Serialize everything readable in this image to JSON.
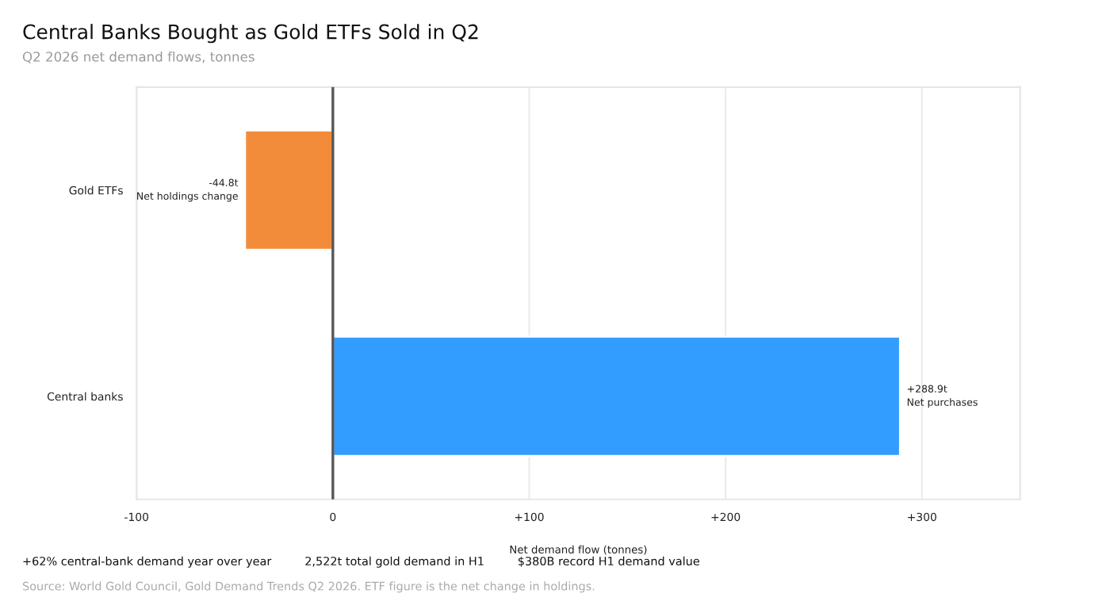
{
  "chart_data": {
    "type": "bar",
    "orientation": "horizontal",
    "title": "Central Banks Bought as Gold ETFs Sold in Q2",
    "subtitle": "Q2 2026 net demand flows, tonnes",
    "xlabel": "Net demand flow (tonnes)",
    "categories": [
      "Gold ETFs",
      "Central banks"
    ],
    "values": [
      -44.8,
      288.9
    ],
    "colors": [
      "#f28c3a",
      "#339dff"
    ],
    "value_labels": [
      "-44.8t\nNet holdings change",
      "+288.9t\nNet purchases"
    ],
    "xlim": [
      -100,
      350
    ],
    "xticks": [
      -100,
      0,
      {
        "value": 100,
        "label": "+100"
      },
      {
        "value": 200,
        "label": "+200"
      },
      {
        "value": 300,
        "label": "+300"
      }
    ],
    "grid": "x",
    "ref_lines": [
      {
        "axis": "x",
        "value": 0,
        "color": "#555555"
      }
    ],
    "annotations": [
      "+62% central-bank demand year over year",
      "2,522t total gold demand in H1",
      "$380B record H1 demand value",
      "Source: World Gold Council, Gold Demand Trends Q2 2026. ETF figure is the net change in holdings."
    ]
  }
}
